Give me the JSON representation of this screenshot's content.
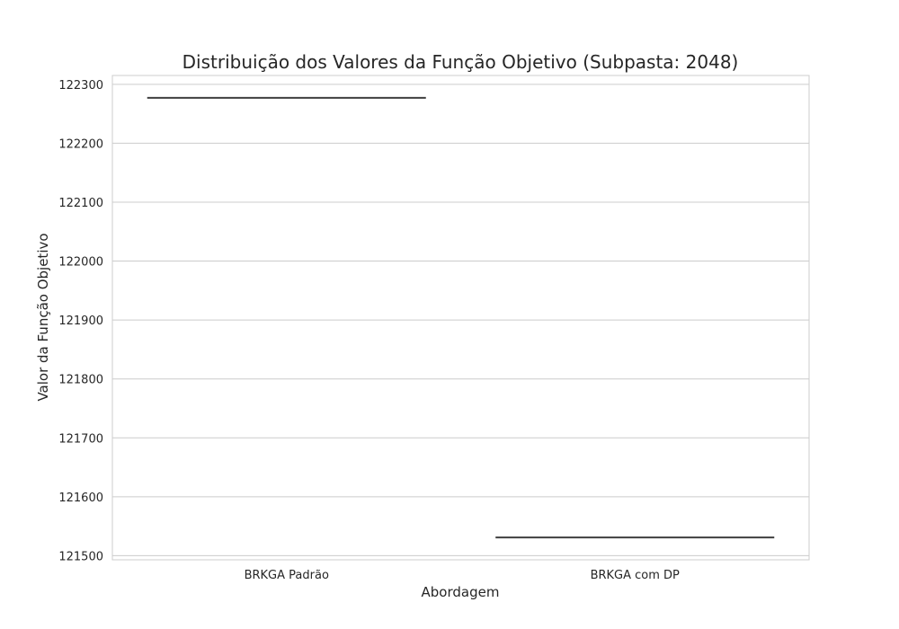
{
  "chart_data": {
    "type": "box",
    "title": "Distribuição dos Valores da Função Objetivo (Subpasta: 2048)",
    "xlabel": "Abordagem",
    "ylabel": "Valor da Função Objetivo",
    "categories": [
      "BRKGA Padrão",
      "BRKGA com DP"
    ],
    "values": [
      122277,
      121531
    ],
    "ylim": [
      121493,
      122315
    ],
    "yticks": [
      121500,
      121600,
      121700,
      121800,
      121900,
      122000,
      122100,
      122200,
      122300
    ],
    "ytick_labels": [
      "121500",
      "121600",
      "121700",
      "121800",
      "121900",
      "122000",
      "122100",
      "122200",
      "122300"
    ],
    "grid": true,
    "colors": {
      "grid": "#cccccc",
      "spine": "#cccccc",
      "line": "#3f3f3f",
      "text": "#262626"
    }
  }
}
